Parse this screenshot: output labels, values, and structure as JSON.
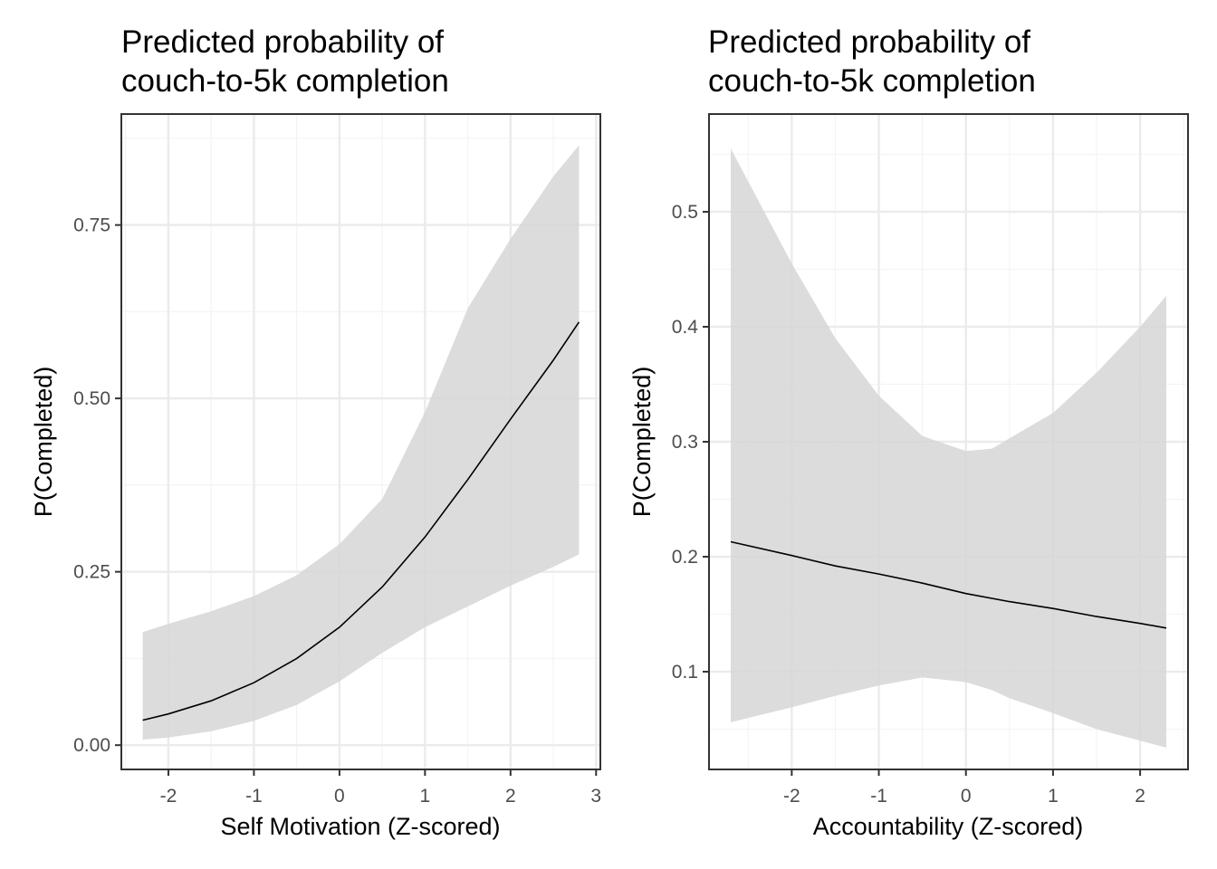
{
  "chart_data": [
    {
      "type": "line",
      "title": [
        "Predicted probability of",
        "couch-to-5k completion"
      ],
      "xlabel": "Self Motivation (Z-scored)",
      "ylabel": "P(Completed)",
      "xlim": [
        -2.55,
        3.05
      ],
      "ylim": [
        -0.035,
        0.91
      ],
      "xticks": [
        -2,
        -1,
        0,
        1,
        2,
        3
      ],
      "xtick_labels": [
        "-2",
        "-1",
        "0",
        "1",
        "2",
        "3"
      ],
      "yticks": [
        0,
        0.25,
        0.5,
        0.75
      ],
      "ytick_labels": [
        "0.00",
        "0.25",
        "0.50",
        "0.75"
      ],
      "grid": true,
      "series": [
        {
          "name": "fit",
          "x": [
            -2.3,
            -2.0,
            -1.5,
            -1.0,
            -0.5,
            0.0,
            0.5,
            1.0,
            1.5,
            2.0,
            2.5,
            2.8
          ],
          "y": [
            0.036,
            0.045,
            0.064,
            0.09,
            0.125,
            0.17,
            0.228,
            0.3,
            0.383,
            0.47,
            0.555,
            0.61
          ]
        }
      ],
      "ribbon": {
        "x": [
          -2.3,
          -2.0,
          -1.5,
          -1.0,
          -0.5,
          0.0,
          0.5,
          1.0,
          1.5,
          2.0,
          2.5,
          2.8
        ],
        "lower": [
          0.008,
          0.011,
          0.02,
          0.035,
          0.058,
          0.092,
          0.133,
          0.17,
          0.2,
          0.23,
          0.257,
          0.275
        ],
        "upper": [
          0.163,
          0.175,
          0.193,
          0.215,
          0.245,
          0.29,
          0.355,
          0.48,
          0.63,
          0.73,
          0.82,
          0.865
        ]
      }
    },
    {
      "type": "line",
      "title": [
        "Predicted probability of",
        "couch-to-5k completion"
      ],
      "xlabel": "Accountability (Z-scored)",
      "ylabel": "P(Completed)",
      "xlim": [
        -2.95,
        2.55
      ],
      "ylim": [
        0.015,
        0.585
      ],
      "xticks": [
        -2,
        -1,
        0,
        1,
        2
      ],
      "xtick_labels": [
        "-2",
        "-1",
        "0",
        "1",
        "2"
      ],
      "yticks": [
        0.1,
        0.2,
        0.3,
        0.4,
        0.5
      ],
      "ytick_labels": [
        "0.1",
        "0.2",
        "0.3",
        "0.4",
        "0.5"
      ],
      "grid": true,
      "series": [
        {
          "name": "fit",
          "x": [
            -2.7,
            -2.0,
            -1.5,
            -1.0,
            -0.5,
            0.0,
            0.5,
            1.0,
            1.5,
            2.0,
            2.3
          ],
          "y": [
            0.213,
            0.201,
            0.192,
            0.185,
            0.177,
            0.168,
            0.161,
            0.155,
            0.148,
            0.142,
            0.138
          ]
        }
      ],
      "ribbon": {
        "x": [
          -2.7,
          -2.0,
          -1.5,
          -1.0,
          -0.5,
          0.0,
          0.3,
          0.5,
          1.0,
          1.5,
          2.0,
          2.3
        ],
        "lower": [
          0.056,
          0.069,
          0.079,
          0.088,
          0.095,
          0.091,
          0.084,
          0.077,
          0.064,
          0.05,
          0.04,
          0.034
        ],
        "upper": [
          0.555,
          0.455,
          0.39,
          0.34,
          0.305,
          0.292,
          0.294,
          0.303,
          0.325,
          0.36,
          0.4,
          0.427
        ]
      }
    }
  ],
  "colors": {
    "ribbon": "#d6d6d6",
    "line": "#000000",
    "panel_border": "#333333",
    "grid_major": "#ebebeb",
    "grid_minor": "#f4f4f4",
    "tick_text": "#4d4d4d"
  }
}
